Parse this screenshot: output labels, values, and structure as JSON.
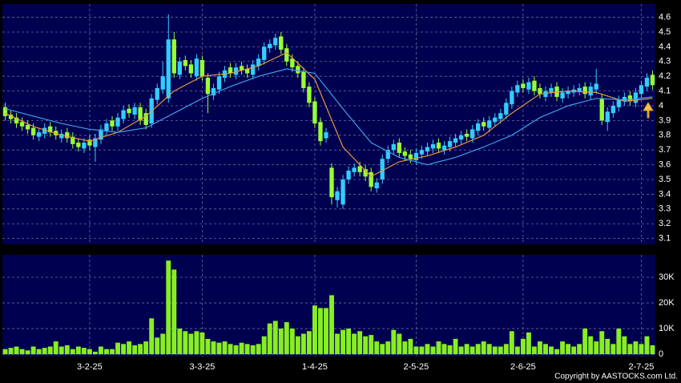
{
  "chart_data": [
    {
      "type": "candlestick",
      "up_color": "#33ccff",
      "down_color": "#99ff33",
      "grid": true,
      "ylim": [
        3.06,
        4.69
      ],
      "yticks": [
        3.1,
        3.2,
        3.3,
        3.4,
        3.5,
        3.6,
        3.7,
        3.8,
        3.9,
        4,
        4.1,
        4.2,
        4.3,
        4.4,
        4.5,
        4.6
      ],
      "open": [
        3.99,
        3.94,
        3.92,
        3.89,
        3.87,
        3.85,
        3.79,
        3.81,
        3.86,
        3.83,
        3.78,
        3.82,
        3.79,
        3.75,
        3.71,
        3.77,
        3.72,
        3.77,
        3.83,
        3.9,
        3.86,
        3.91,
        3.98,
        3.94,
        3.99,
        3.95,
        3.88,
        4.04,
        4.11,
        4.05,
        4.45,
        4.21,
        4.31,
        4.28,
        4.2,
        4.31,
        4.19,
        4.07,
        4.11,
        4.19,
        4.26,
        4.21,
        4.27,
        4.25,
        4.21,
        4.27,
        4.31,
        4.39,
        4.41,
        4.47,
        4.39,
        4.32,
        4.27,
        4.23,
        4.13,
        4.03,
        3.89,
        3.78,
        3.58,
        3.36,
        3.33,
        3.5,
        3.55,
        3.59,
        3.57,
        3.55,
        3.44,
        3.5,
        3.64,
        3.7,
        3.75,
        3.69,
        3.67,
        3.63,
        3.67,
        3.69,
        3.71,
        3.75,
        3.7,
        3.72,
        3.75,
        3.77,
        3.81,
        3.78,
        3.83,
        3.89,
        3.85,
        3.89,
        3.91,
        3.94,
        4.01,
        4.09,
        4.15,
        4.11,
        4.17,
        4.12,
        4.06,
        4.09,
        4.13,
        4.05,
        4.08,
        4.09,
        4.1,
        4.13,
        4.07,
        4.11,
        4.05,
        3.89,
        3.95,
        3.99,
        4.03,
        4.07,
        4.02,
        4.08,
        4.13,
        4.21
      ],
      "high": [
        4.02,
        3.97,
        3.95,
        3.92,
        3.9,
        3.88,
        3.85,
        3.88,
        3.89,
        3.86,
        3.84,
        3.85,
        3.82,
        3.78,
        3.78,
        3.8,
        3.81,
        3.87,
        3.91,
        3.93,
        3.95,
        4.0,
        4.01,
        4.02,
        4.02,
        3.98,
        4.08,
        4.15,
        4.3,
        4.62,
        4.5,
        4.33,
        4.34,
        4.31,
        4.35,
        4.34,
        4.22,
        4.15,
        4.23,
        4.27,
        4.29,
        4.29,
        4.3,
        4.28,
        4.31,
        4.35,
        4.43,
        4.45,
        4.49,
        4.5,
        4.42,
        4.35,
        4.3,
        4.26,
        4.16,
        4.06,
        3.92,
        3.85,
        3.61,
        3.45,
        3.53,
        3.59,
        3.61,
        3.62,
        3.6,
        3.58,
        3.51,
        3.67,
        3.73,
        3.77,
        3.78,
        3.72,
        3.7,
        3.71,
        3.73,
        3.75,
        3.77,
        3.78,
        3.76,
        3.79,
        3.81,
        3.83,
        3.84,
        3.87,
        3.91,
        3.92,
        3.93,
        3.95,
        3.98,
        4.05,
        4.13,
        4.17,
        4.18,
        4.19,
        4.2,
        4.15,
        4.13,
        4.15,
        4.16,
        4.12,
        4.13,
        4.14,
        4.15,
        4.16,
        4.16,
        4.25,
        4.08,
        3.99,
        4.03,
        4.07,
        4.09,
        4.1,
        4.12,
        4.17,
        4.22,
        4.24
      ],
      "low": [
        3.9,
        3.88,
        3.85,
        3.83,
        3.81,
        3.77,
        3.76,
        3.78,
        3.79,
        3.77,
        3.75,
        3.75,
        3.71,
        3.69,
        3.68,
        3.7,
        3.62,
        3.74,
        3.8,
        3.83,
        3.83,
        3.88,
        3.92,
        3.91,
        3.87,
        3.84,
        3.85,
        4.01,
        4.08,
        4.02,
        4.19,
        4.18,
        4.24,
        4.19,
        4.17,
        4.17,
        3.95,
        4.04,
        4.08,
        4.16,
        4.19,
        4.18,
        4.21,
        4.19,
        4.18,
        4.24,
        4.28,
        4.36,
        4.38,
        4.35,
        4.27,
        4.23,
        4.19,
        4.09,
        3.99,
        3.85,
        3.73,
        3.75,
        3.33,
        3.31,
        3.3,
        3.47,
        3.52,
        3.52,
        3.49,
        3.42,
        3.41,
        3.47,
        3.61,
        3.67,
        3.65,
        3.63,
        3.61,
        3.6,
        3.64,
        3.66,
        3.68,
        3.68,
        3.67,
        3.69,
        3.72,
        3.74,
        3.76,
        3.75,
        3.8,
        3.83,
        3.82,
        3.86,
        3.88,
        3.91,
        3.98,
        4.06,
        4.09,
        4.08,
        4.07,
        4.05,
        4.03,
        4.06,
        4.03,
        4.02,
        4.05,
        4.06,
        4.07,
        4.05,
        4.04,
        4.08,
        3.87,
        3.83,
        3.92,
        3.96,
        4.0,
        4.0,
        3.99,
        4.05,
        4.1,
        4.11
      ],
      "close": [
        3.93,
        3.91,
        3.88,
        3.86,
        3.84,
        3.8,
        3.82,
        3.85,
        3.82,
        3.8,
        3.81,
        3.78,
        3.74,
        3.72,
        3.75,
        3.73,
        3.78,
        3.84,
        3.88,
        3.86,
        3.92,
        3.97,
        3.95,
        3.99,
        3.9,
        3.87,
        4.05,
        4.12,
        4.2,
        4.45,
        4.22,
        4.3,
        4.27,
        4.22,
        4.32,
        4.2,
        4.08,
        4.12,
        4.2,
        4.24,
        4.22,
        4.26,
        4.24,
        4.22,
        4.28,
        4.32,
        4.4,
        4.42,
        4.46,
        4.38,
        4.3,
        4.26,
        4.22,
        4.12,
        4.02,
        3.88,
        3.76,
        3.82,
        3.38,
        3.42,
        3.5,
        3.56,
        3.58,
        3.55,
        3.52,
        3.45,
        3.48,
        3.64,
        3.7,
        3.74,
        3.68,
        3.66,
        3.64,
        3.68,
        3.7,
        3.72,
        3.74,
        3.71,
        3.73,
        3.76,
        3.78,
        3.8,
        3.79,
        3.84,
        3.88,
        3.86,
        3.9,
        3.92,
        3.95,
        4.02,
        4.1,
        4.14,
        4.12,
        4.16,
        4.1,
        4.08,
        4.1,
        4.12,
        4.06,
        4.09,
        4.1,
        4.11,
        4.12,
        4.08,
        4.13,
        4.15,
        3.9,
        3.96,
        4.0,
        4.04,
        4.06,
        4.03,
        4.09,
        4.14,
        4.19,
        4.14
      ],
      "series": [
        {
          "color": "#e8953a",
          "x": [
            0,
            5,
            10,
            15,
            20,
            25,
            30,
            35,
            40,
            45,
            50,
            55,
            60,
            65,
            70,
            75,
            80,
            85,
            90,
            95,
            100,
            105,
            110,
            115
          ],
          "values": [
            3.95,
            3.86,
            3.8,
            3.76,
            3.82,
            3.93,
            4.1,
            4.2,
            4.22,
            4.27,
            4.36,
            4.18,
            3.72,
            3.52,
            3.62,
            3.66,
            3.72,
            3.8,
            3.95,
            4.08,
            4.1,
            4.09,
            4.03,
            4.05
          ]
        },
        {
          "color": "#3f9fe8",
          "x": [
            0,
            5,
            10,
            15,
            20,
            25,
            30,
            35,
            40,
            45,
            50,
            55,
            60,
            65,
            70,
            75,
            80,
            85,
            90,
            95,
            100,
            105,
            110,
            115
          ],
          "values": [
            3.98,
            3.93,
            3.88,
            3.84,
            3.82,
            3.85,
            3.95,
            4.05,
            4.13,
            4.2,
            4.25,
            4.22,
            3.98,
            3.75,
            3.65,
            3.6,
            3.65,
            3.72,
            3.8,
            3.92,
            4.0,
            4.05,
            4.04,
            4.06
          ]
        }
      ]
    },
    {
      "type": "bar",
      "color": "#88ee22",
      "grid": true,
      "ylim": [
        -900,
        38750
      ],
      "yticks": [
        0,
        {
          "value": 10000,
          "label": "10K"
        },
        {
          "value": 20000,
          "label": "20K"
        },
        {
          "value": 30000,
          "label": "30K"
        }
      ],
      "categories": [
        null,
        null,
        null,
        null,
        null,
        null,
        null,
        null,
        null,
        null,
        null,
        null,
        null,
        null,
        null,
        "3-2-25",
        null,
        null,
        null,
        null,
        null,
        null,
        null,
        null,
        null,
        null,
        null,
        null,
        null,
        null,
        null,
        null,
        null,
        null,
        null,
        "3-3-25",
        null,
        null,
        null,
        null,
        null,
        null,
        null,
        null,
        null,
        null,
        null,
        null,
        null,
        null,
        null,
        null,
        null,
        null,
        null,
        "1-4-25",
        null,
        null,
        null,
        null,
        null,
        null,
        null,
        null,
        null,
        null,
        null,
        null,
        null,
        null,
        null,
        null,
        null,
        "2-5-25",
        null,
        null,
        null,
        null,
        null,
        null,
        null,
        null,
        null,
        null,
        null,
        null,
        null,
        null,
        null,
        null,
        null,
        null,
        "2-6-25",
        null,
        null,
        null,
        null,
        null,
        null,
        null,
        null,
        null,
        null,
        null,
        null,
        null,
        null,
        null,
        null,
        null,
        null,
        null,
        null,
        "2-7-25",
        null,
        null
      ],
      "values": [
        2000,
        2500,
        3000,
        2000,
        1500,
        3000,
        2000,
        2500,
        3000,
        5000,
        3000,
        3500,
        2000,
        3000,
        2500,
        2000,
        1000,
        3000,
        2000,
        2000,
        4500,
        4000,
        5000,
        3500,
        4000,
        5000,
        14000,
        6500,
        8000,
        36500,
        33000,
        10000,
        9000,
        8000,
        9000,
        8500,
        6000,
        5000,
        4500,
        5000,
        4000,
        3500,
        4500,
        4000,
        3500,
        4000,
        7000,
        12000,
        13000,
        10000,
        12500,
        10000,
        7000,
        8000,
        9000,
        19000,
        18000,
        18000,
        23000,
        8000,
        9500,
        10000,
        8000,
        9000,
        7000,
        7500,
        5000,
        4000,
        5000,
        9500,
        8000,
        5000,
        6000,
        3000,
        3000,
        4000,
        3000,
        5000,
        4000,
        3500,
        6000,
        3000,
        4000,
        3000,
        4000,
        5000,
        4000,
        3000,
        3000,
        4000,
        9000,
        3000,
        6000,
        8500,
        3000,
        5000,
        4000,
        3000,
        2000,
        5000,
        4000,
        3000,
        4000,
        10000,
        7000,
        5000,
        9000,
        6000,
        4000,
        10000,
        7000,
        4000,
        5000,
        4000,
        7000,
        3500
      ],
      "copyright": "Copyright by AASTOCKS.com Ltd."
    }
  ]
}
